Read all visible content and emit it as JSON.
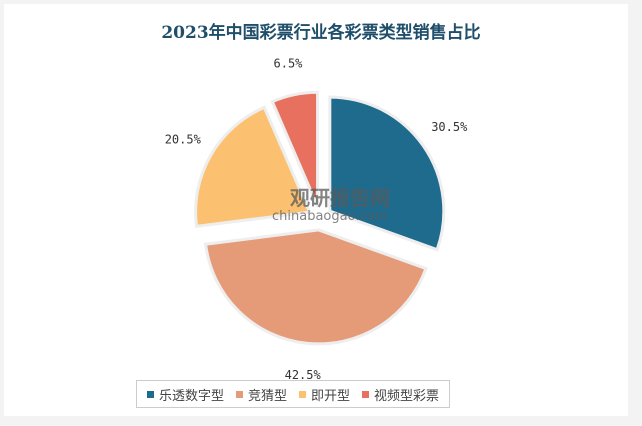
{
  "title": "2023年中国彩票行业各彩票类型销售占比",
  "watermark": {
    "name": "观研报告网",
    "url": "chinabaogao.com"
  },
  "chart_data": {
    "type": "pie",
    "title": "2023年中国彩票行业各彩票类型销售占比",
    "categories": [
      "乐透数字型",
      "竞猜型",
      "即开型",
      "视频型彩票"
    ],
    "values": [
      30.5,
      42.5,
      20.5,
      6.5
    ],
    "labels": [
      "30.5%",
      "42.5%",
      "20.5%",
      "6.5%"
    ],
    "colors": [
      "#1f6b8e",
      "#e59a78",
      "#fbc170",
      "#e8705e"
    ],
    "exploded": true,
    "legend": "bottom"
  }
}
